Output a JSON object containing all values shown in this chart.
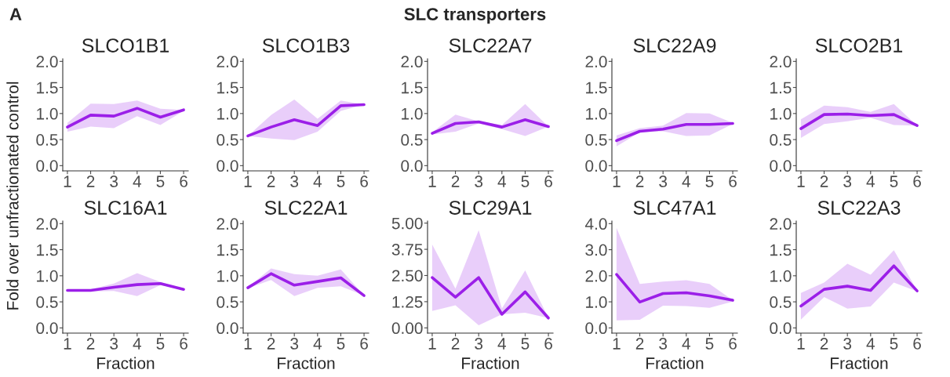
{
  "chart_data": [
    {
      "type": "line",
      "title": "SLCO1B1",
      "ylabel": "Fold over unfractionated control",
      "annotations": [
        "A",
        "SLC transporters"
      ],
      "x": [
        1,
        2,
        3,
        4,
        5,
        6
      ],
      "xlim": [
        0.8,
        6.2
      ],
      "xticks": [
        1,
        2,
        3,
        4,
        5,
        6
      ],
      "ylim": [
        -0.1,
        2.05
      ],
      "yticks": [
        {
          "value": 0,
          "label": "0.0"
        },
        0.5,
        {
          "value": 1,
          "label": "1.0"
        },
        1.5,
        {
          "value": 2,
          "label": "2.0"
        }
      ],
      "series": [
        {
          "color": "#9b1fe8",
          "values": [
            0.74,
            0.97,
            0.95,
            1.1,
            0.93,
            1.07
          ],
          "lower": [
            0.65,
            0.75,
            0.72,
            0.95,
            0.78,
            1.05
          ],
          "upper": [
            0.82,
            1.19,
            1.18,
            1.25,
            1.09,
            1.07
          ]
        }
      ]
    },
    {
      "type": "line",
      "title": "SLCO1B3",
      "x": [
        1,
        2,
        3,
        4,
        5,
        6
      ],
      "xlim": [
        0.8,
        6.2
      ],
      "xticks": [
        1,
        2,
        3,
        4,
        5,
        6
      ],
      "ylim": [
        -0.1,
        2.05
      ],
      "yticks": [
        {
          "value": 0,
          "label": "0.0"
        },
        0.5,
        {
          "value": 1,
          "label": "1.0"
        },
        1.5,
        {
          "value": 2,
          "label": "2.0"
        }
      ],
      "series": [
        {
          "color": "#9b1fe8",
          "values": [
            0.57,
            0.74,
            0.88,
            0.77,
            1.15,
            1.17
          ],
          "lower": [
            0.57,
            0.52,
            0.49,
            0.65,
            1.05,
            1.17
          ],
          "upper": [
            0.57,
            0.97,
            1.27,
            0.9,
            1.25,
            1.17
          ]
        }
      ]
    },
    {
      "type": "line",
      "title": "SLC22A7",
      "x": [
        1,
        2,
        3,
        4,
        5,
        6
      ],
      "xlim": [
        0.8,
        6.2
      ],
      "xticks": [
        1,
        2,
        3,
        4,
        5,
        6
      ],
      "ylim": [
        -0.1,
        2.05
      ],
      "yticks": [
        {
          "value": 0,
          "label": "0.0"
        },
        0.5,
        {
          "value": 1,
          "label": "1.0"
        },
        1.5,
        {
          "value": 2,
          "label": "2.0"
        }
      ],
      "series": [
        {
          "color": "#9b1fe8",
          "values": [
            0.62,
            0.81,
            0.84,
            0.74,
            0.88,
            0.75
          ],
          "lower": [
            0.6,
            0.65,
            0.81,
            0.7,
            0.57,
            0.75
          ],
          "upper": [
            0.64,
            0.98,
            0.85,
            0.78,
            1.18,
            0.75
          ]
        }
      ]
    },
    {
      "type": "line",
      "title": "SLC22A9",
      "x": [
        1,
        2,
        3,
        4,
        5,
        6
      ],
      "xlim": [
        0.8,
        6.2
      ],
      "xticks": [
        1,
        2,
        3,
        4,
        5,
        6
      ],
      "ylim": [
        -0.1,
        2.05
      ],
      "yticks": [
        {
          "value": 0,
          "label": "0.0"
        },
        0.5,
        {
          "value": 1,
          "label": "1.0"
        },
        1.5,
        {
          "value": 2,
          "label": "2.0"
        }
      ],
      "series": [
        {
          "color": "#9b1fe8",
          "values": [
            0.48,
            0.66,
            0.7,
            0.79,
            0.79,
            0.81
          ],
          "lower": [
            0.37,
            0.64,
            0.66,
            0.57,
            0.58,
            0.8
          ],
          "upper": [
            0.58,
            0.72,
            0.77,
            1.01,
            1.0,
            0.82
          ]
        }
      ]
    },
    {
      "type": "line",
      "title": "SLCO2B1",
      "x": [
        1,
        2,
        3,
        4,
        5,
        6
      ],
      "xlim": [
        0.8,
        6.2
      ],
      "xticks": [
        1,
        2,
        3,
        4,
        5,
        6
      ],
      "ylim": [
        -0.1,
        2.05
      ],
      "yticks": [
        {
          "value": 0,
          "label": "0.0"
        },
        0.5,
        {
          "value": 1,
          "label": "1.0"
        },
        1.5,
        {
          "value": 2,
          "label": "2.0"
        }
      ],
      "series": [
        {
          "color": "#9b1fe8",
          "values": [
            0.71,
            0.98,
            0.99,
            0.96,
            0.98,
            0.77
          ],
          "lower": [
            0.53,
            0.8,
            0.85,
            0.92,
            0.78,
            0.77
          ],
          "upper": [
            0.89,
            1.15,
            1.12,
            1.03,
            1.18,
            0.77
          ]
        }
      ]
    },
    {
      "type": "line",
      "title": "SLC16A1",
      "xlabel": "Fraction",
      "x": [
        1,
        2,
        3,
        4,
        5,
        6
      ],
      "xlim": [
        0.8,
        6.2
      ],
      "xticks": [
        1,
        2,
        3,
        4,
        5,
        6
      ],
      "ylim": [
        -0.1,
        2.05
      ],
      "yticks": [
        {
          "value": 0,
          "label": "0.0"
        },
        0.5,
        {
          "value": 1,
          "label": "1.0"
        },
        1.5,
        {
          "value": 2,
          "label": "2.0"
        }
      ],
      "series": [
        {
          "color": "#9b1fe8",
          "values": [
            0.72,
            0.72,
            0.78,
            0.83,
            0.85,
            0.74
          ],
          "lower": [
            0.7,
            0.7,
            0.71,
            0.61,
            0.82,
            0.74
          ],
          "upper": [
            0.74,
            0.74,
            0.85,
            1.05,
            0.88,
            0.74
          ]
        }
      ]
    },
    {
      "type": "line",
      "title": "SLC22A1",
      "xlabel": "Fraction",
      "x": [
        1,
        2,
        3,
        4,
        5,
        6
      ],
      "xlim": [
        0.8,
        6.2
      ],
      "xticks": [
        1,
        2,
        3,
        4,
        5,
        6
      ],
      "ylim": [
        -0.1,
        2.05
      ],
      "yticks": [
        {
          "value": 0,
          "label": "0.0"
        },
        0.5,
        {
          "value": 1,
          "label": "1.0"
        },
        1.5,
        {
          "value": 2,
          "label": "2.0"
        }
      ],
      "series": [
        {
          "color": "#9b1fe8",
          "values": [
            0.77,
            1.04,
            0.82,
            0.89,
            0.96,
            0.62
          ],
          "lower": [
            0.76,
            0.92,
            0.61,
            0.77,
            0.8,
            0.62
          ],
          "upper": [
            0.78,
            1.14,
            1.03,
            1.0,
            1.12,
            0.62
          ]
        }
      ]
    },
    {
      "type": "line",
      "title": "SLC29A1",
      "xlabel": "Fraction",
      "x": [
        1,
        2,
        3,
        4,
        5,
        6
      ],
      "xlim": [
        0.8,
        6.2
      ],
      "xticks": [
        1,
        2,
        3,
        4,
        5,
        6
      ],
      "ylim": [
        -0.25,
        5.1
      ],
      "yticks": [
        {
          "value": 0,
          "label": "0.00"
        },
        1.25,
        {
          "value": 2.5,
          "label": "2.50"
        },
        3.75,
        {
          "value": 5,
          "label": "5.00"
        }
      ],
      "series": [
        {
          "color": "#9b1fe8",
          "values": [
            2.4,
            1.47,
            2.4,
            0.65,
            1.72,
            0.47
          ],
          "lower": [
            0.81,
            1.08,
            0.12,
            0.65,
            0.72,
            0.47
          ],
          "upper": [
            3.98,
            1.87,
            4.66,
            0.93,
            2.74,
            0.47
          ]
        }
      ]
    },
    {
      "type": "line",
      "title": "SLC47A1",
      "xlabel": "Fraction",
      "x": [
        1,
        2,
        3,
        4,
        5,
        6
      ],
      "xlim": [
        0.8,
        6.2
      ],
      "xticks": [
        1,
        2,
        3,
        4,
        5,
        6
      ],
      "ylim": [
        -0.2,
        4.1
      ],
      "yticks": [
        {
          "value": 0,
          "label": "0.0"
        },
        {
          "value": 1,
          "label": "1.0"
        },
        {
          "value": 2,
          "label": "2.0"
        },
        {
          "value": 3,
          "label": "3.0"
        },
        {
          "value": 4,
          "label": "4.0"
        }
      ],
      "series": [
        {
          "color": "#9b1fe8",
          "values": [
            2.05,
            0.99,
            1.32,
            1.35,
            1.23,
            1.06
          ],
          "lower": [
            0.29,
            0.31,
            0.85,
            0.84,
            0.77,
            1.01
          ],
          "upper": [
            3.84,
            1.69,
            1.78,
            1.83,
            1.69,
            1.06
          ]
        }
      ]
    },
    {
      "type": "line",
      "title": "SLC22A3",
      "xlabel": "Fraction",
      "x": [
        1,
        2,
        3,
        4,
        5,
        6
      ],
      "xlim": [
        0.8,
        6.2
      ],
      "xticks": [
        1,
        2,
        3,
        4,
        5,
        6
      ],
      "ylim": [
        -0.1,
        2.05
      ],
      "yticks": [
        {
          "value": 0,
          "label": "0.0"
        },
        0.5,
        {
          "value": 1,
          "label": "1.0"
        },
        1.5,
        {
          "value": 2,
          "label": "2.0"
        }
      ],
      "series": [
        {
          "color": "#9b1fe8",
          "values": [
            0.42,
            0.74,
            0.8,
            0.72,
            1.19,
            0.71
          ],
          "lower": [
            0.16,
            0.59,
            0.37,
            0.41,
            0.87,
            0.7
          ],
          "upper": [
            0.67,
            0.87,
            1.23,
            1.02,
            1.49,
            0.72
          ]
        }
      ]
    }
  ]
}
